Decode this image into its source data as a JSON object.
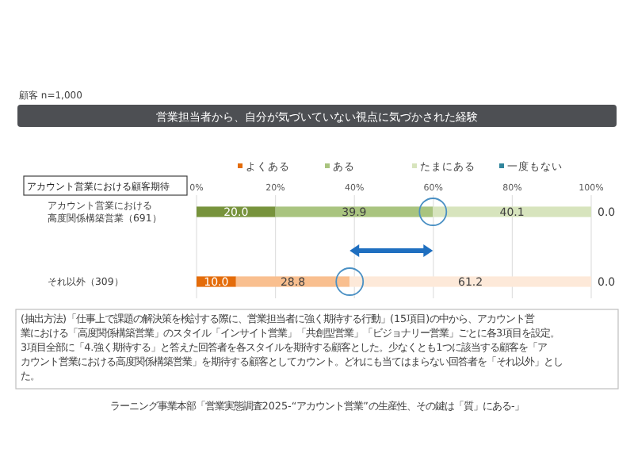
{
  "chart_data": {
    "type": "bar",
    "orientation": "horizontal",
    "stacked": true,
    "title": "営業担当者から、自分が気づいていない視点に気づかされた経験",
    "subtitle": "顧客 n=1,000",
    "legend_title": "アカウント営業における顧客期待",
    "categories": [
      "アカウント営業における高度関係構築営業（691）",
      "それ以外（309）"
    ],
    "series": [
      {
        "name": "よくある",
        "color": "#e46c0a",
        "colors": [
          "#77933c",
          "#e46c0a"
        ],
        "values": [
          20.0,
          10.0
        ],
        "value_labels": [
          "20.0",
          "10.0"
        ]
      },
      {
        "name": "ある",
        "color": "#a9c47f",
        "colors": [
          "#a9c47f",
          "#f9bf8f"
        ],
        "values": [
          39.9,
          28.8
        ],
        "value_labels": [
          "39.9",
          "28.8"
        ]
      },
      {
        "name": "たまにある",
        "color": "#d7e4bd",
        "colors": [
          "#d7e4bd",
          "#fde9d9"
        ],
        "values": [
          40.1,
          61.2
        ],
        "value_labels": [
          "40.1",
          "61.2"
        ]
      },
      {
        "name": "一度もない",
        "color": "#31859c",
        "colors": [
          "#31859c",
          "#31859c"
        ],
        "values": [
          0.0,
          0.0
        ],
        "value_labels": [
          "0.0",
          "0.0"
        ]
      }
    ],
    "xlim": [
      0,
      100
    ],
    "xticks": [
      {
        "value": 0,
        "label": "0%"
      },
      {
        "value": 20,
        "label": "20%"
      },
      {
        "value": 40,
        "label": "40%"
      },
      {
        "value": 60,
        "label": "60%"
      },
      {
        "value": 80,
        "label": "80%"
      },
      {
        "value": 100,
        "label": "100%"
      }
    ],
    "grid": "x",
    "legend": "top",
    "annotations": [
      "(抽出方法)「仕事上で課題の解決策を検討する際に、営業担当者に強く期待する行動」(15項目)の中から、アカウント営業における「高度関係構築営業」のスタイル「インサイト営業」「共創型営業」「ビジョナリー営業」ごとに各3項目を設定。3項目全部に「4.強く期待する」と答えた回答者を各スタイルを期待する顧客とした。少なくとも1つに該当する顧客を「アカウント営業における高度関係構築営業」を期待する顧客としてカウント。どれにも当てはまらない回答者を「それ以外」とした。",
      "ラーニング事業本部「営業実態調査2025-“アカウント営業”の生産性、その鍵は「質」にある-」"
    ]
  }
}
